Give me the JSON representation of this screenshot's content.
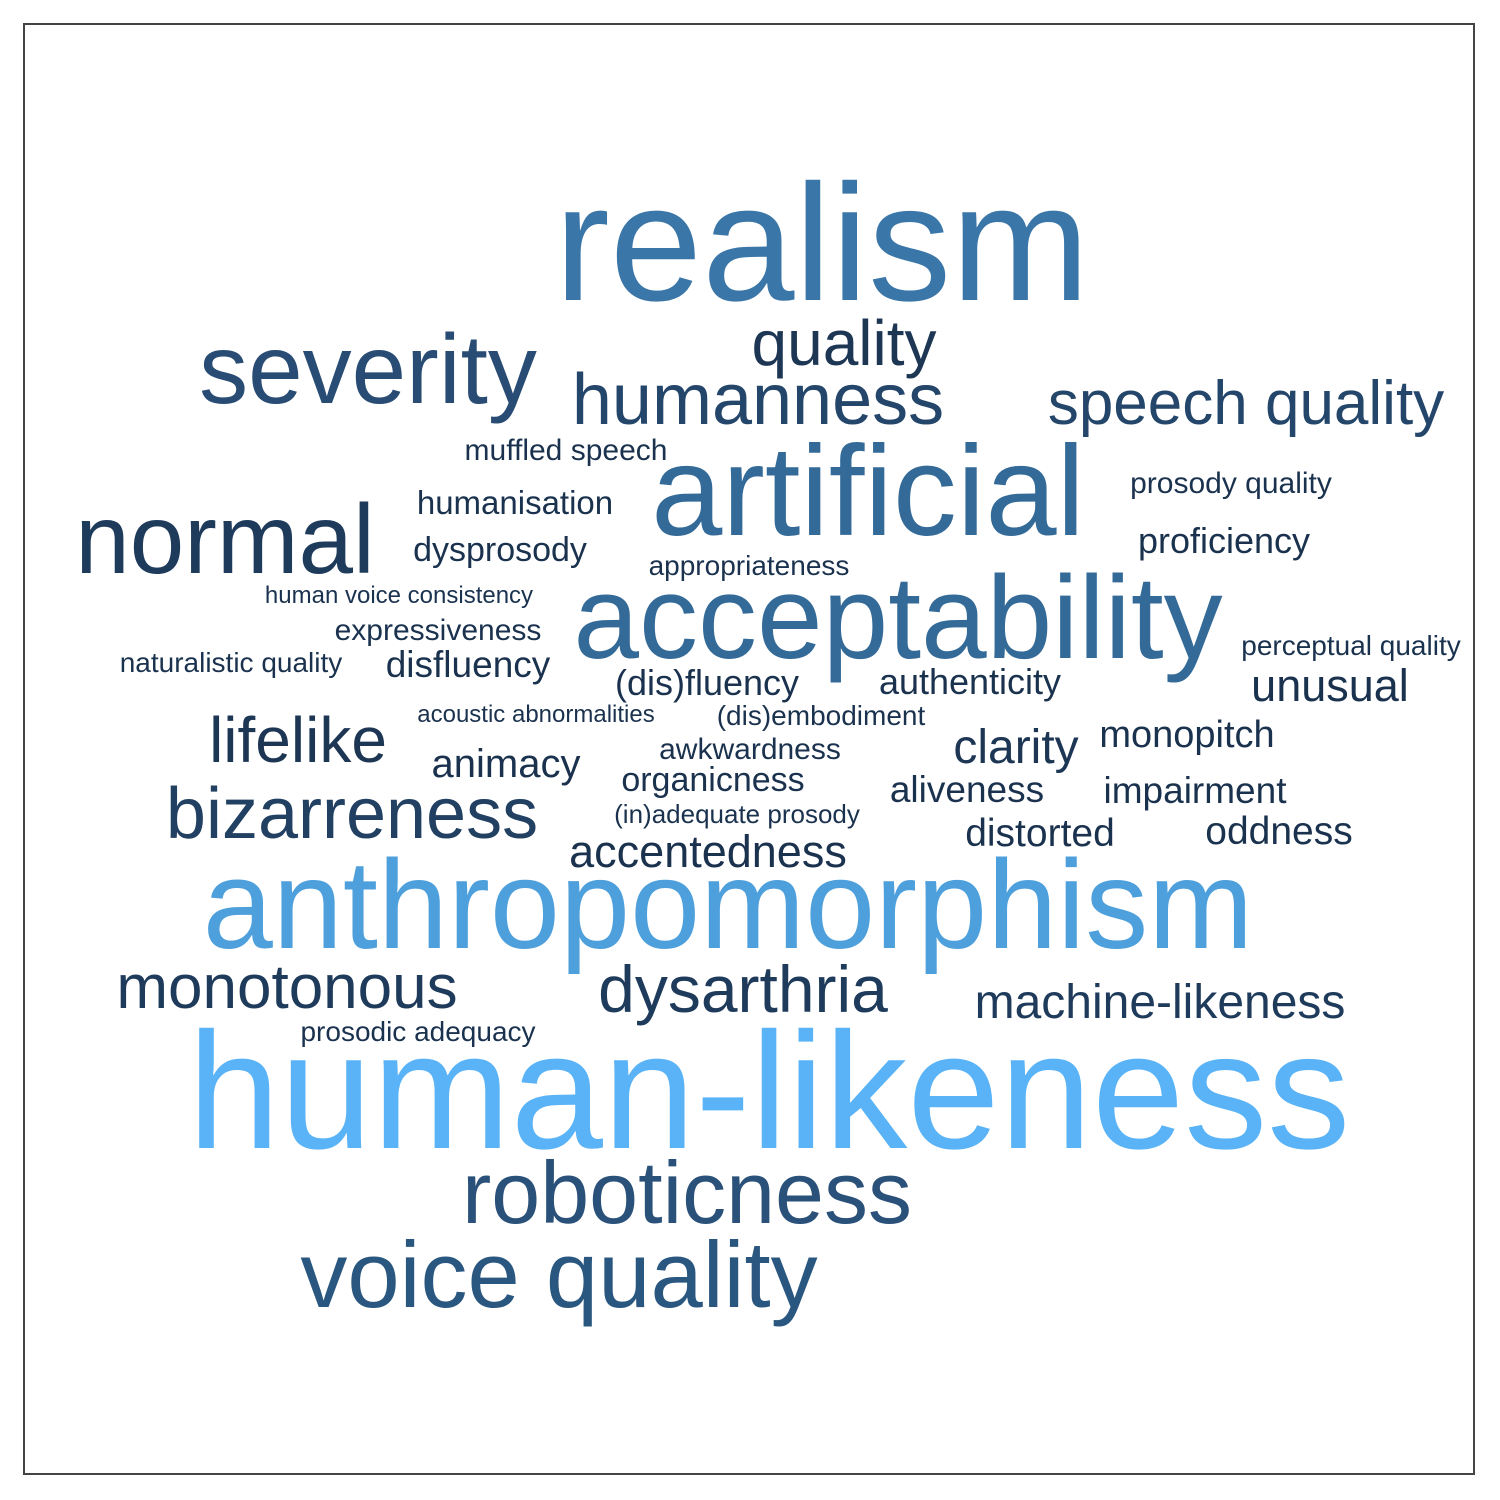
{
  "palette": {
    "w1": "#59b3f6",
    "w2": "#4ea0dc",
    "w3": "#3a76a8",
    "w4": "#336a98",
    "w5": "#2a5780",
    "w6": "#2a5179",
    "w7": "#284c73",
    "w8": "#24466a",
    "w9": "#214062",
    "w10": "#1f3b5c",
    "w11": "#1c3654",
    "w12": "#1a324e",
    "w13": "#192f4a"
  },
  "words": [
    {
      "text": "realism",
      "color": "w3"
    },
    {
      "text": "quality",
      "color": "w11"
    },
    {
      "text": "severity",
      "color": "w7"
    },
    {
      "text": "humanness",
      "color": "w8"
    },
    {
      "text": "speech quality",
      "color": "w8"
    },
    {
      "text": "muffled speech",
      "color": "w12"
    },
    {
      "text": "artificial",
      "color": "w4"
    },
    {
      "text": "prosody quality",
      "color": "w12"
    },
    {
      "text": "humanisation",
      "color": "w12"
    },
    {
      "text": "normal",
      "color": "w10"
    },
    {
      "text": "dysprosody",
      "color": "w12"
    },
    {
      "text": "proficiency",
      "color": "w12"
    },
    {
      "text": "appropriateness",
      "color": "w12"
    },
    {
      "text": "human voice consistency",
      "color": "w12"
    },
    {
      "text": "acceptability",
      "color": "w4"
    },
    {
      "text": "expressiveness",
      "color": "w12"
    },
    {
      "text": "perceptual quality",
      "color": "w12"
    },
    {
      "text": "naturalistic quality",
      "color": "w12"
    },
    {
      "text": "disfluency",
      "color": "w12"
    },
    {
      "text": "(dis)fluency",
      "color": "w12"
    },
    {
      "text": "authenticity",
      "color": "w12"
    },
    {
      "text": "unusual",
      "color": "w12"
    },
    {
      "text": "acoustic abnormalities",
      "color": "w12"
    },
    {
      "text": "(dis)embodiment",
      "color": "w12"
    },
    {
      "text": "lifelike",
      "color": "w11"
    },
    {
      "text": "clarity",
      "color": "w11"
    },
    {
      "text": "monopitch",
      "color": "w12"
    },
    {
      "text": "awkwardness",
      "color": "w12"
    },
    {
      "text": "animacy",
      "color": "w12"
    },
    {
      "text": "organicness",
      "color": "w12"
    },
    {
      "text": "aliveness",
      "color": "w12"
    },
    {
      "text": "impairment",
      "color": "w12"
    },
    {
      "text": "bizarreness",
      "color": "w9"
    },
    {
      "text": "(in)adequate prosody",
      "color": "w12"
    },
    {
      "text": "distorted",
      "color": "w12"
    },
    {
      "text": "oddness",
      "color": "w12"
    },
    {
      "text": "accentedness",
      "color": "w12"
    },
    {
      "text": "anthropomorphism",
      "color": "w2"
    },
    {
      "text": "monotonous",
      "color": "w10"
    },
    {
      "text": "dysarthria",
      "color": "w10"
    },
    {
      "text": "machine-likeness",
      "color": "w10"
    },
    {
      "text": "prosodic adequacy",
      "color": "w12"
    },
    {
      "text": "human-likeness",
      "color": "w1"
    },
    {
      "text": "roboticness",
      "color": "w6"
    },
    {
      "text": "voice quality",
      "color": "w5"
    }
  ]
}
